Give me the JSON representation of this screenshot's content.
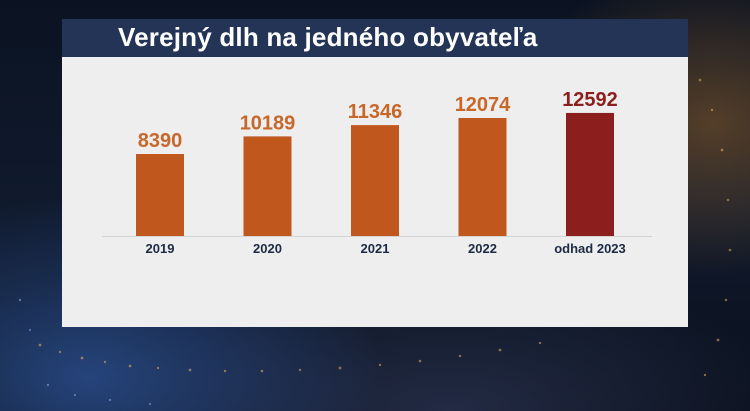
{
  "title": "Verejný dlh na jedného obyvateľa",
  "colors": {
    "bar": "#c0581e",
    "bar_estimate": "#8d1e1e",
    "value_label": "#c8672a",
    "value_label_estimate": "#8d1e1e",
    "category_label": "#1e2a44",
    "panel": "#eeeeee",
    "title_bar": "#233456"
  },
  "chart_data": {
    "type": "bar",
    "title": "Verejný dlh na jedného obyvateľa",
    "categories": [
      "2019",
      "2020",
      "2021",
      "2022",
      "odhad 2023"
    ],
    "values": [
      8390,
      10189,
      11346,
      12074,
      12592
    ],
    "value_labels": [
      "8390",
      "10189",
      "11346",
      "12074",
      "12592"
    ],
    "highlighted_index": 4,
    "xlabel": "",
    "ylabel": "",
    "grid": false,
    "legend": "none"
  }
}
